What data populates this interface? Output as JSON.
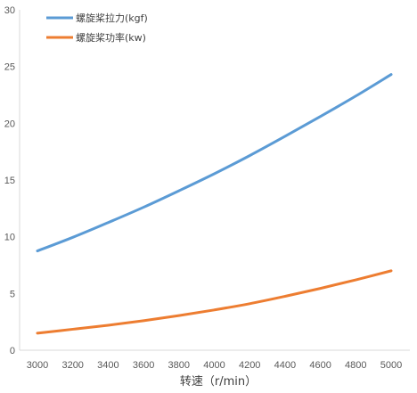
{
  "chart_data": {
    "type": "line",
    "title": "",
    "xlabel": "转速（r/min）",
    "ylabel": "",
    "x": [
      3000,
      3200,
      3400,
      3600,
      3800,
      4000,
      4200,
      4400,
      4600,
      4800,
      5000
    ],
    "xticks": [
      "3000",
      "3200",
      "3400",
      "3600",
      "3800",
      "4000",
      "4200",
      "4400",
      "4600",
      "4800",
      "5000"
    ],
    "yticks": [
      "0",
      "5",
      "10",
      "15",
      "20",
      "25",
      "30"
    ],
    "ylim": [
      0,
      30
    ],
    "grid": false,
    "legend_position": "top-left",
    "series": [
      {
        "name": "螺旋桨拉力(kgf)",
        "color": "#5B9BD5",
        "values": [
          8.75,
          9.95,
          11.25,
          12.6,
          14.05,
          15.55,
          17.15,
          18.85,
          20.6,
          22.4,
          24.3
        ]
      },
      {
        "name": "螺旋桨功率(kw)",
        "color": "#ED7D31",
        "values": [
          1.5,
          1.85,
          2.2,
          2.6,
          3.05,
          3.55,
          4.1,
          4.75,
          5.45,
          6.2,
          7.0
        ]
      }
    ]
  }
}
